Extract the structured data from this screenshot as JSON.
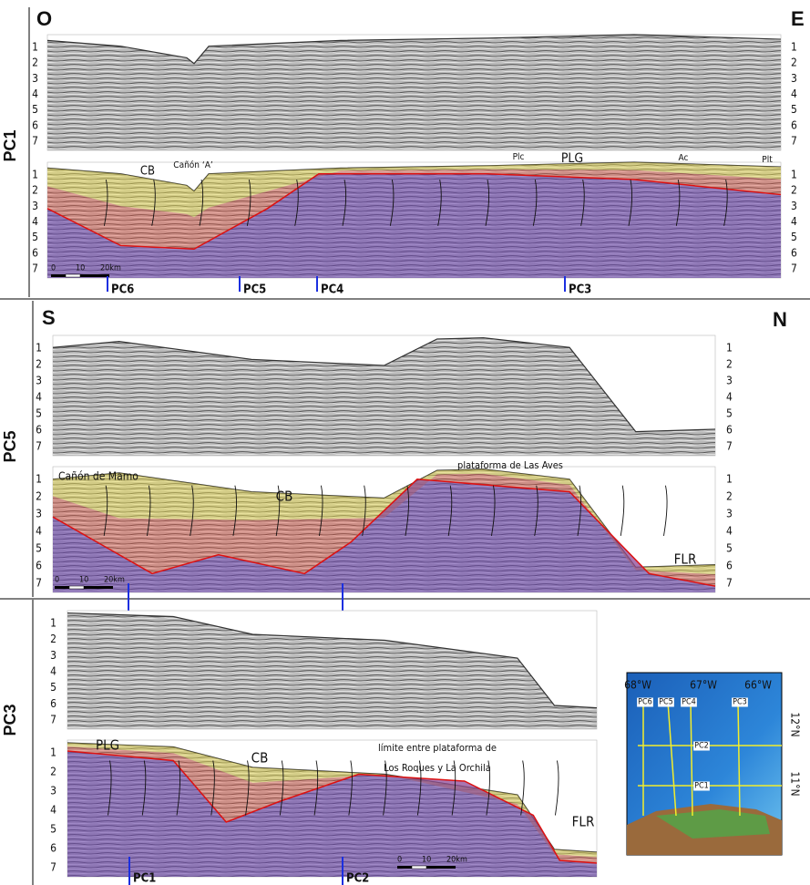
{
  "panels": [
    {
      "label": "PC1",
      "left": "O",
      "right": "E",
      "depth_ticks": [
        1,
        2,
        3,
        4,
        5,
        6,
        7
      ],
      "annotations": [
        "CB",
        "Cañón ‘A’",
        "Plc",
        "PLG",
        "Ac",
        "Plt"
      ],
      "scale_bar": [
        "0",
        "10",
        "20km"
      ],
      "crossings": [
        "PC6",
        "PC5",
        "PC4",
        "PC3"
      ]
    },
    {
      "label": "PC5",
      "left": "S",
      "right": "N",
      "depth_ticks": [
        1,
        2,
        3,
        4,
        5,
        6,
        7
      ],
      "annotations": [
        "Cañón de Mamo",
        "CB",
        "plataforma de Las Aves",
        "FLR"
      ],
      "scale_bar": [
        "0",
        "10",
        "20km"
      ]
    },
    {
      "label": "PC3",
      "depth_ticks": [
        1,
        2,
        3,
        4,
        5,
        6,
        7
      ],
      "annotations": [
        "PLG",
        "CB",
        "límite entre plataforma de",
        "Los Roques y La Orchila",
        "FLR"
      ],
      "scale_bar": [
        "0",
        "10",
        "20km"
      ],
      "crossings": [
        "PC1",
        "PC2"
      ]
    }
  ],
  "map": {
    "lon_labels": [
      "68°W",
      "67°W",
      "66°W"
    ],
    "lat_labels": [
      "12°N",
      "11°N"
    ],
    "lines": [
      "PC6",
      "PC5",
      "PC4",
      "PC3",
      "PC2",
      "PC1"
    ]
  }
}
